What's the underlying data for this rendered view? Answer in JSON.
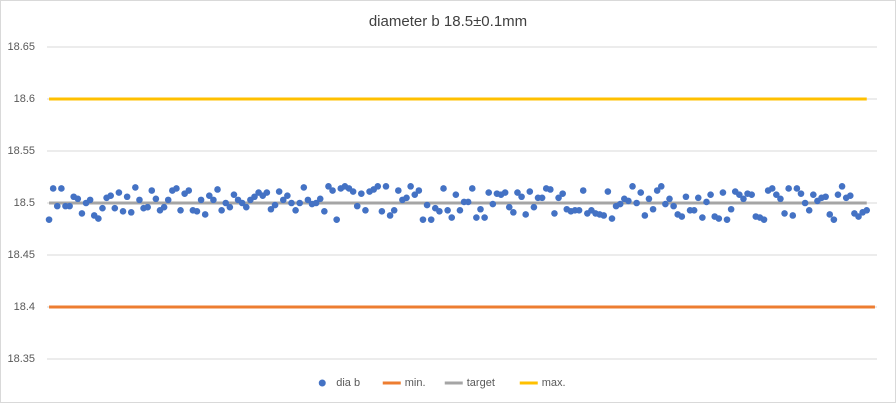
{
  "chart_data": {
    "type": "line",
    "title": "diameter b 18.5±0.1mm",
    "ylim": [
      18.35,
      18.65
    ],
    "yticks": [
      18.35,
      18.4,
      18.45,
      18.5,
      18.55,
      18.6,
      18.65
    ],
    "grid": true,
    "legend": "bottom",
    "series": [
      {
        "name": "dia b",
        "color": "#4472c4",
        "style": "markers",
        "values": [
          18.484,
          18.514,
          18.497,
          18.514,
          18.497,
          18.497,
          18.506,
          18.504,
          18.49,
          18.5,
          18.503,
          18.488,
          18.485,
          18.495,
          18.505,
          18.507,
          18.495,
          18.51,
          18.492,
          18.506,
          18.491,
          18.515,
          18.503,
          18.495,
          18.496,
          18.512,
          18.504,
          18.493,
          18.496,
          18.503,
          18.512,
          18.514,
          18.493,
          18.509,
          18.512,
          18.493,
          18.492,
          18.503,
          18.489,
          18.507,
          18.503,
          18.513,
          18.493,
          18.5,
          18.496,
          18.508,
          18.503,
          18.5,
          18.496,
          18.503,
          18.506,
          18.51,
          18.507,
          18.51,
          18.494,
          18.498,
          18.511,
          18.503,
          18.507,
          18.5,
          18.493,
          18.5,
          18.515,
          18.503,
          18.499,
          18.5,
          18.504,
          18.492,
          18.516,
          18.512,
          18.484,
          18.514,
          18.516,
          18.514,
          18.511,
          18.497,
          18.509,
          18.493,
          18.511,
          18.513,
          18.516,
          18.492,
          18.516,
          18.488,
          18.493,
          18.512,
          18.503,
          18.505,
          18.516,
          18.508,
          18.512,
          18.484,
          18.498,
          18.484,
          18.495,
          18.492,
          18.514,
          18.493,
          18.486,
          18.508,
          18.493,
          18.501,
          18.501,
          18.514,
          18.486,
          18.494,
          18.486,
          18.51,
          18.499,
          18.509,
          18.508,
          18.51,
          18.496,
          18.491,
          18.51,
          18.506,
          18.489,
          18.511,
          18.496,
          18.505,
          18.505,
          18.514,
          18.513,
          18.49,
          18.505,
          18.509,
          18.494,
          18.492,
          18.493,
          18.493,
          18.512,
          18.49,
          18.493,
          18.49,
          18.489,
          18.488,
          18.511,
          18.485,
          18.497,
          18.499,
          18.504,
          18.502,
          18.516,
          18.5,
          18.51,
          18.488,
          18.504,
          18.494,
          18.512,
          18.516,
          18.499,
          18.504,
          18.497,
          18.489,
          18.487,
          18.506,
          18.493,
          18.493,
          18.505,
          18.486,
          18.501,
          18.508,
          18.487,
          18.485,
          18.51,
          18.484,
          18.494,
          18.511,
          18.508,
          18.504,
          18.509,
          18.508,
          18.487,
          18.486,
          18.484,
          18.512,
          18.514,
          18.508,
          18.504,
          18.49,
          18.514,
          18.488,
          18.514,
          18.509,
          18.5,
          18.493,
          18.508,
          18.502,
          18.505,
          18.506,
          18.489,
          18.484,
          18.508,
          18.516,
          18.505,
          18.507,
          18.49,
          18.487,
          18.491,
          18.493
        ]
      },
      {
        "name": "min.",
        "color": "#ed7d31",
        "style": "line",
        "values": [
          18.4,
          18.4,
          18.4,
          18.4,
          18.4,
          18.4,
          18.4,
          18.4,
          18.4,
          18.4,
          18.4,
          18.4,
          18.4,
          18.4,
          18.4,
          18.4,
          18.4,
          18.4,
          18.4,
          18.4,
          18.4,
          18.4,
          18.4,
          18.4,
          18.4,
          18.4,
          18.4,
          18.4,
          18.4,
          18.4,
          18.4,
          18.4,
          18.4,
          18.4,
          18.4,
          18.4,
          18.4,
          18.4,
          18.4,
          18.4,
          18.4,
          18.4,
          18.4,
          18.4,
          18.4,
          18.4,
          18.4,
          18.4,
          18.4,
          18.4,
          18.4,
          18.4,
          18.4,
          18.4,
          18.4,
          18.4,
          18.4,
          18.4,
          18.4,
          18.4,
          18.4,
          18.4,
          18.4,
          18.4,
          18.4,
          18.4,
          18.4,
          18.4,
          18.4,
          18.4,
          18.4,
          18.4,
          18.4,
          18.4,
          18.4,
          18.4,
          18.4,
          18.4,
          18.4,
          18.4,
          18.4,
          18.4,
          18.4,
          18.4,
          18.4,
          18.4,
          18.4,
          18.4,
          18.4,
          18.4,
          18.4,
          18.4,
          18.4,
          18.4,
          18.4,
          18.4,
          18.4,
          18.4,
          18.4,
          18.4,
          18.4,
          18.4,
          18.4,
          18.4,
          18.4,
          18.4,
          18.4,
          18.4,
          18.4,
          18.4,
          18.4,
          18.4,
          18.4,
          18.4,
          18.4,
          18.4,
          18.4,
          18.4,
          18.4,
          18.4,
          18.4,
          18.4,
          18.4,
          18.4,
          18.4,
          18.4,
          18.4,
          18.4,
          18.4,
          18.4,
          18.4,
          18.4,
          18.4,
          18.4,
          18.4,
          18.4,
          18.4,
          18.4,
          18.4,
          18.4,
          18.4,
          18.4,
          18.4,
          18.4,
          18.4,
          18.4,
          18.4,
          18.4,
          18.4,
          18.4,
          18.4,
          18.4,
          18.4,
          18.4,
          18.4,
          18.4,
          18.4,
          18.4,
          18.4,
          18.4,
          18.4,
          18.4,
          18.4,
          18.4,
          18.4,
          18.4,
          18.4,
          18.4,
          18.4,
          18.4,
          18.4,
          18.4,
          18.4,
          18.4,
          18.4,
          18.4,
          18.4,
          18.4,
          18.4,
          18.4,
          18.4,
          18.4,
          18.4,
          18.4,
          18.4,
          18.4,
          18.4,
          18.4,
          18.4,
          18.4,
          18.4,
          18.4,
          18.4,
          18.4,
          18.4,
          18.4,
          18.4,
          18.4,
          18.4,
          18.4,
          18.4,
          18.4
        ]
      },
      {
        "name": "target",
        "color": "#a5a5a5",
        "style": "line",
        "values": [
          18.5,
          18.5,
          18.5,
          18.5,
          18.5,
          18.5,
          18.5,
          18.5,
          18.5,
          18.5,
          18.5,
          18.5,
          18.5,
          18.5,
          18.5,
          18.5,
          18.5,
          18.5,
          18.5,
          18.5,
          18.5,
          18.5,
          18.5,
          18.5,
          18.5,
          18.5,
          18.5,
          18.5,
          18.5,
          18.5,
          18.5,
          18.5,
          18.5,
          18.5,
          18.5,
          18.5,
          18.5,
          18.5,
          18.5,
          18.5,
          18.5,
          18.5,
          18.5,
          18.5,
          18.5,
          18.5,
          18.5,
          18.5,
          18.5,
          18.5,
          18.5,
          18.5,
          18.5,
          18.5,
          18.5,
          18.5,
          18.5,
          18.5,
          18.5,
          18.5,
          18.5,
          18.5,
          18.5,
          18.5,
          18.5,
          18.5,
          18.5,
          18.5,
          18.5,
          18.5,
          18.5,
          18.5,
          18.5,
          18.5,
          18.5,
          18.5,
          18.5,
          18.5,
          18.5,
          18.5,
          18.5,
          18.5,
          18.5,
          18.5,
          18.5,
          18.5,
          18.5,
          18.5,
          18.5,
          18.5,
          18.5,
          18.5,
          18.5,
          18.5,
          18.5,
          18.5,
          18.5,
          18.5,
          18.5,
          18.5,
          18.5,
          18.5,
          18.5,
          18.5,
          18.5,
          18.5,
          18.5,
          18.5,
          18.5,
          18.5,
          18.5,
          18.5,
          18.5,
          18.5,
          18.5,
          18.5,
          18.5,
          18.5,
          18.5,
          18.5,
          18.5,
          18.5,
          18.5,
          18.5,
          18.5,
          18.5,
          18.5,
          18.5,
          18.5,
          18.5,
          18.5,
          18.5,
          18.5,
          18.5,
          18.5,
          18.5,
          18.5,
          18.5,
          18.5,
          18.5,
          18.5,
          18.5,
          18.5,
          18.5,
          18.5,
          18.5,
          18.5,
          18.5,
          18.5,
          18.5,
          18.5,
          18.5,
          18.5,
          18.5,
          18.5,
          18.5,
          18.5,
          18.5,
          18.5,
          18.5,
          18.5,
          18.5,
          18.5,
          18.5,
          18.5,
          18.5,
          18.5,
          18.5,
          18.5,
          18.5,
          18.5,
          18.5,
          18.5,
          18.5,
          18.5,
          18.5,
          18.5,
          18.5,
          18.5,
          18.5,
          18.5,
          18.5,
          18.5,
          18.5,
          18.5,
          18.5,
          18.5,
          18.5,
          18.5,
          18.5,
          18.5,
          18.5,
          18.5,
          18.5,
          18.5,
          18.5,
          18.5,
          18.5,
          18.5,
          18.5
        ]
      },
      {
        "name": "max.",
        "color": "#ffc000",
        "style": "line",
        "values": [
          18.6,
          18.6,
          18.6,
          18.6,
          18.6,
          18.6,
          18.6,
          18.6,
          18.6,
          18.6,
          18.6,
          18.6,
          18.6,
          18.6,
          18.6,
          18.6,
          18.6,
          18.6,
          18.6,
          18.6,
          18.6,
          18.6,
          18.6,
          18.6,
          18.6,
          18.6,
          18.6,
          18.6,
          18.6,
          18.6,
          18.6,
          18.6,
          18.6,
          18.6,
          18.6,
          18.6,
          18.6,
          18.6,
          18.6,
          18.6,
          18.6,
          18.6,
          18.6,
          18.6,
          18.6,
          18.6,
          18.6,
          18.6,
          18.6,
          18.6,
          18.6,
          18.6,
          18.6,
          18.6,
          18.6,
          18.6,
          18.6,
          18.6,
          18.6,
          18.6,
          18.6,
          18.6,
          18.6,
          18.6,
          18.6,
          18.6,
          18.6,
          18.6,
          18.6,
          18.6,
          18.6,
          18.6,
          18.6,
          18.6,
          18.6,
          18.6,
          18.6,
          18.6,
          18.6,
          18.6,
          18.6,
          18.6,
          18.6,
          18.6,
          18.6,
          18.6,
          18.6,
          18.6,
          18.6,
          18.6,
          18.6,
          18.6,
          18.6,
          18.6,
          18.6,
          18.6,
          18.6,
          18.6,
          18.6,
          18.6,
          18.6,
          18.6,
          18.6,
          18.6,
          18.6,
          18.6,
          18.6,
          18.6,
          18.6,
          18.6,
          18.6,
          18.6,
          18.6,
          18.6,
          18.6,
          18.6,
          18.6,
          18.6,
          18.6,
          18.6,
          18.6,
          18.6,
          18.6,
          18.6,
          18.6,
          18.6,
          18.6,
          18.6,
          18.6,
          18.6,
          18.6,
          18.6,
          18.6,
          18.6,
          18.6,
          18.6,
          18.6,
          18.6,
          18.6,
          18.6,
          18.6,
          18.6,
          18.6,
          18.6,
          18.6,
          18.6,
          18.6,
          18.6,
          18.6,
          18.6,
          18.6,
          18.6,
          18.6,
          18.6,
          18.6,
          18.6,
          18.6,
          18.6,
          18.6,
          18.6,
          18.6,
          18.6,
          18.6,
          18.6,
          18.6,
          18.6,
          18.6,
          18.6,
          18.6,
          18.6,
          18.6,
          18.6,
          18.6,
          18.6,
          18.6,
          18.6,
          18.6,
          18.6,
          18.6,
          18.6,
          18.6,
          18.6,
          18.6,
          18.6,
          18.6,
          18.6,
          18.6,
          18.6,
          18.6,
          18.6,
          18.6,
          18.6,
          18.6,
          18.6,
          18.6,
          18.6,
          18.6,
          18.6,
          18.6,
          18.6
        ]
      }
    ]
  }
}
